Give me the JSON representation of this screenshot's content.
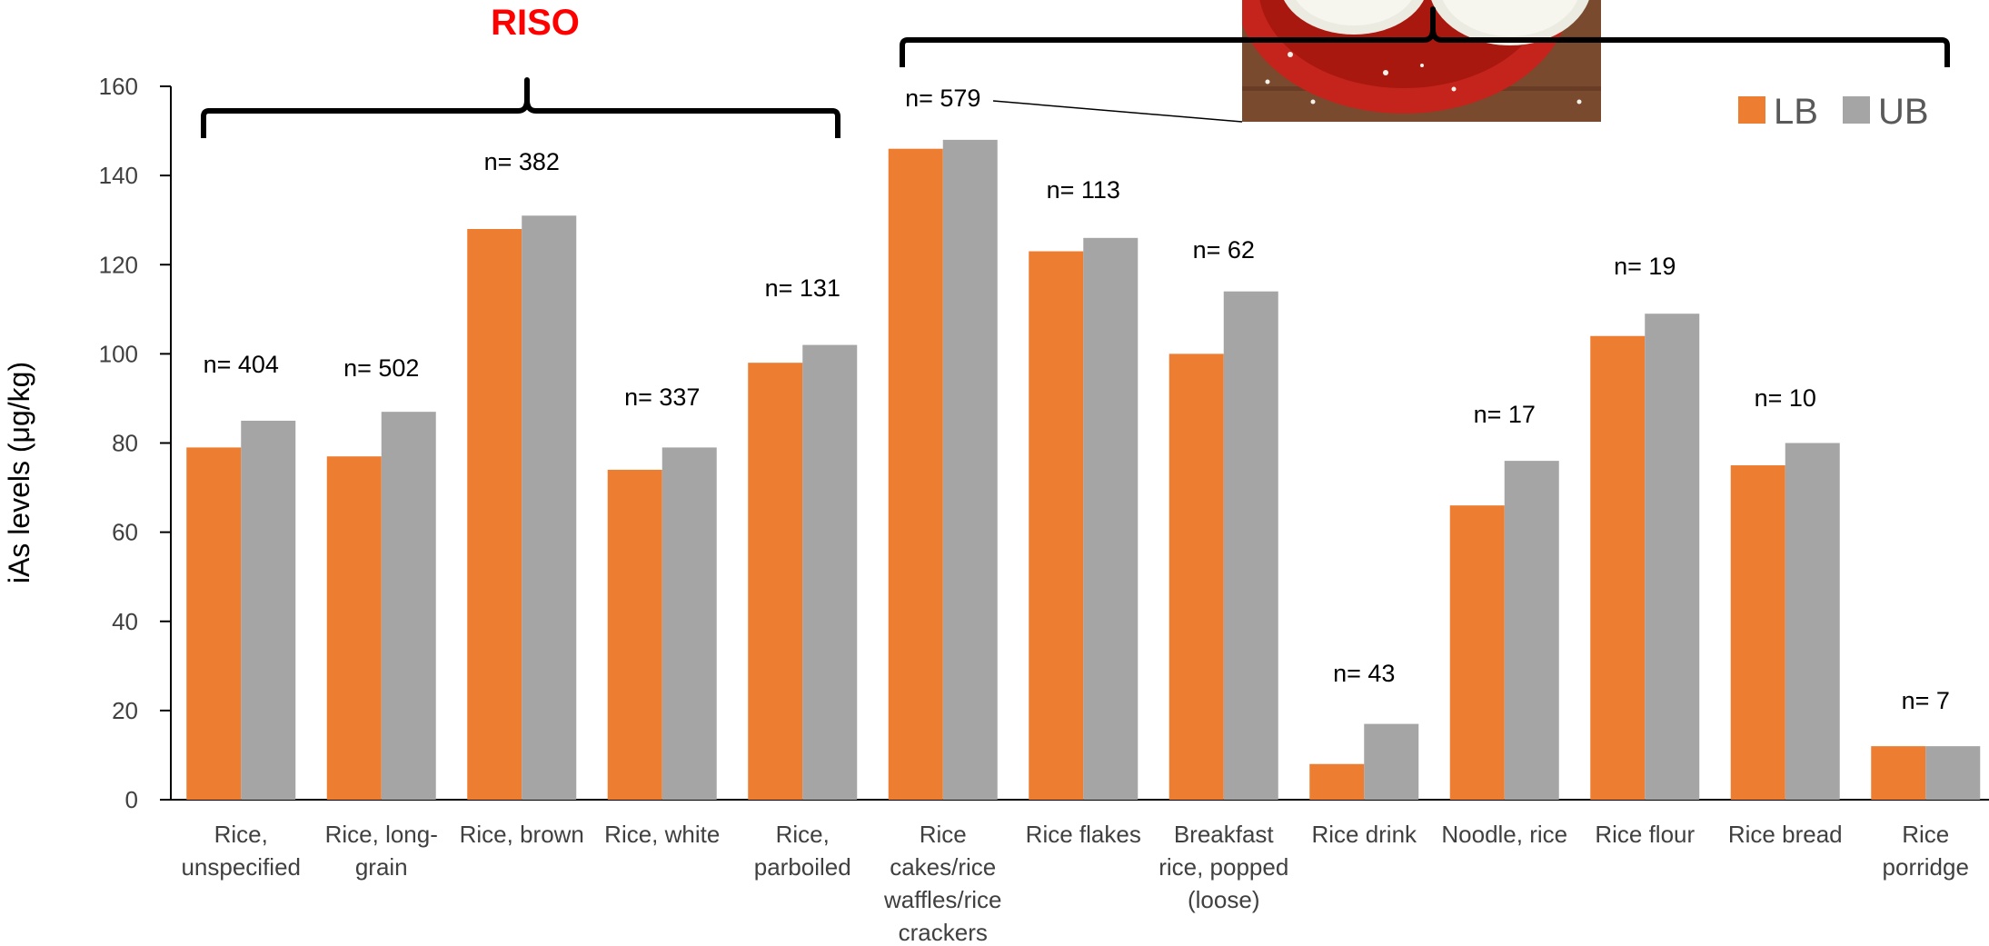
{
  "chart_data": {
    "type": "bar",
    "ylabel": "iAs levels (μg/kg)",
    "ylim": [
      0,
      160
    ],
    "yticks": [
      0,
      20,
      40,
      60,
      80,
      100,
      120,
      140,
      160
    ],
    "grid": false,
    "legend_position": "top-right",
    "categories": [
      "Rice, unspecified",
      "Rice, long-grain",
      "Rice, brown",
      "Rice, white",
      "Rice, parboiled",
      "Rice cakes/rice waffles/rice crackers",
      "Rice flakes",
      "Breakfast rice, popped (loose)",
      "Rice drink",
      "Noodle, rice",
      "Rice flour",
      "Rice bread",
      "Rice porridge"
    ],
    "category_lines": [
      [
        "Rice,",
        "unspecified"
      ],
      [
        "Rice, long-",
        "grain"
      ],
      [
        "Rice, brown"
      ],
      [
        "Rice, white"
      ],
      [
        "Rice,",
        "parboiled"
      ],
      [
        "Rice",
        "cakes/rice",
        "waffles/rice",
        "crackers"
      ],
      [
        "Rice flakes"
      ],
      [
        "Breakfast",
        "rice, popped",
        "(loose)"
      ],
      [
        "Rice drink"
      ],
      [
        "Noodle, rice"
      ],
      [
        "Rice flour"
      ],
      [
        "Rice bread"
      ],
      [
        "Rice",
        "porridge"
      ]
    ],
    "series": [
      {
        "name": "LB",
        "color": "#ED7D31",
        "values": [
          79,
          77,
          128,
          74,
          98,
          146,
          123,
          100,
          8,
          66,
          104,
          75,
          12
        ]
      },
      {
        "name": "UB",
        "color": "#A5A5A5",
        "values": [
          85,
          87,
          131,
          79,
          102,
          148,
          126,
          114,
          17,
          76,
          109,
          80,
          12
        ]
      }
    ],
    "annotations": [
      "n= 404",
      "n= 502",
      "n= 382",
      "n= 337",
      "n= 131",
      "n= 579",
      "n= 113",
      "n= 62",
      "n= 43",
      "n= 17",
      "n= 19",
      "n= 10",
      "n= 7"
    ],
    "group_label": "RISO"
  },
  "photo": {
    "icon": "rice-cakes-photo"
  }
}
